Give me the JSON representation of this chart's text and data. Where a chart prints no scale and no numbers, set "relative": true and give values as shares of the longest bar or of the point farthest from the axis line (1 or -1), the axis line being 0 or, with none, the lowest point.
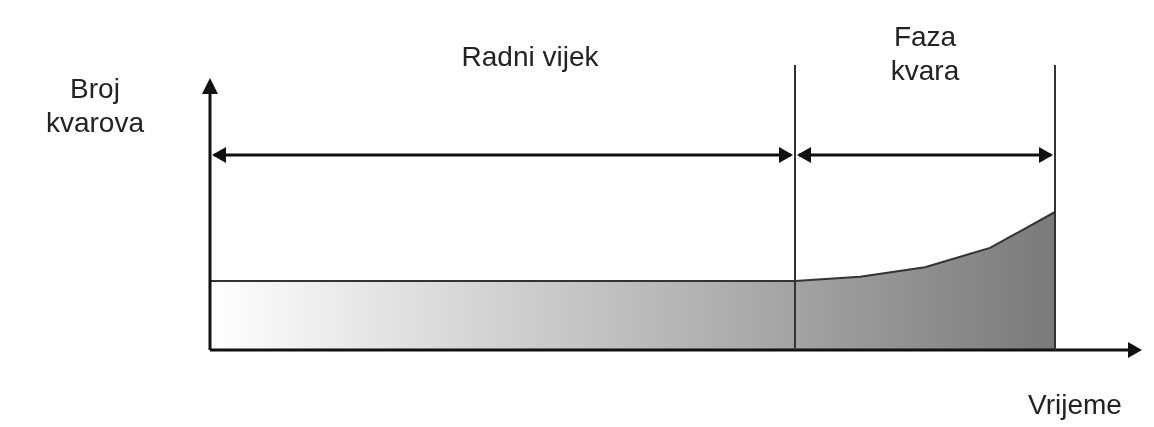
{
  "chart_data": {
    "type": "area",
    "relative": true,
    "xlabel": "Vrijeme",
    "ylabel": "Broj kvarova",
    "categories": [
      null,
      null,
      null,
      null,
      null,
      null,
      null,
      null,
      null,
      null,
      null,
      null,
      null,
      null
    ],
    "values": [
      0.5,
      0.5,
      0.5,
      0.5,
      0.5,
      0.5,
      0.5,
      0.5,
      0.5,
      0.5,
      0.53,
      0.6,
      0.74,
      1
    ],
    "color": "#7a7a7a",
    "annotations": [
      "Radni vijek",
      "Faza kvara"
    ],
    "grid": false
  }
}
